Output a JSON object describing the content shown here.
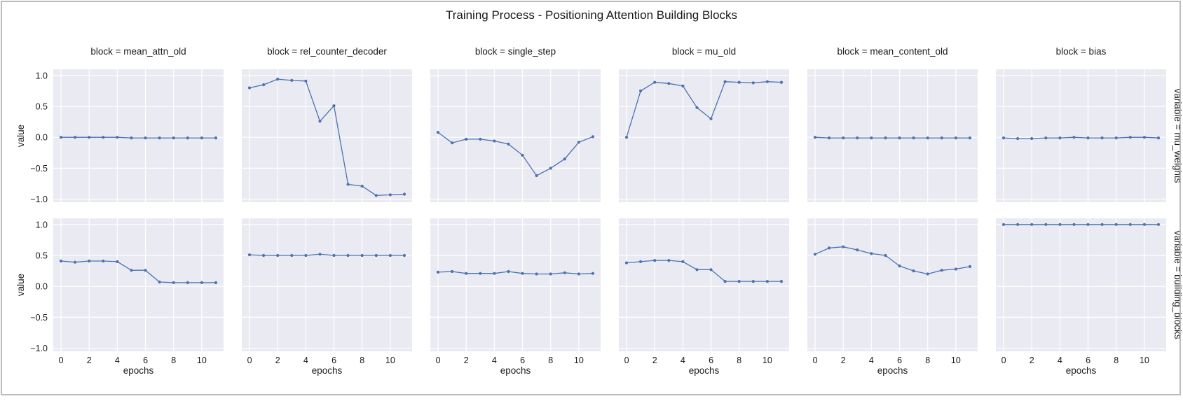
{
  "chart_data": {
    "type": "line",
    "title": "Training Process - Positioning Attention Building Blocks",
    "xlabel": "epochs",
    "ylabel": "value",
    "xlim": [
      -0.55,
      11.55
    ],
    "ylim": [
      -1.05,
      1.1
    ],
    "xticks": [
      0,
      2,
      4,
      6,
      8,
      10
    ],
    "yticks": [
      -1.0,
      -0.5,
      0.0,
      0.5,
      1.0
    ],
    "ytick_labels": [
      "−1.0",
      "−0.5",
      "0.0",
      "0.5",
      "1.0"
    ],
    "grid": true,
    "color": "#4c72b0",
    "background": "#eaeaf2",
    "columns": [
      {
        "key": "mean_attn_old",
        "title": "block = mean_attn_old"
      },
      {
        "key": "rel_counter_decoder",
        "title": "block = rel_counter_decoder"
      },
      {
        "key": "single_step",
        "title": "block = single_step"
      },
      {
        "key": "mu_old",
        "title": "block = mu_old"
      },
      {
        "key": "mean_content_old",
        "title": "block = mean_content_old"
      },
      {
        "key": "bias",
        "title": "block = bias"
      }
    ],
    "rows": [
      {
        "key": "mu_weights",
        "label": "variable = mu_weights"
      },
      {
        "key": "building_blocks",
        "label": "variable = building_blocks"
      }
    ],
    "x": [
      0,
      1,
      2,
      3,
      4,
      5,
      6,
      7,
      8,
      9,
      10,
      11
    ],
    "series": {
      "mu_weights": {
        "mean_attn_old": [
          0.0,
          0.0,
          0.0,
          0.0,
          0.0,
          -0.01,
          -0.01,
          -0.01,
          -0.01,
          -0.01,
          -0.01,
          -0.01
        ],
        "rel_counter_decoder": [
          0.8,
          0.85,
          0.94,
          0.92,
          0.91,
          0.26,
          0.51,
          -0.76,
          -0.79,
          -0.94,
          -0.93,
          -0.92
        ],
        "single_step": [
          0.08,
          -0.09,
          -0.03,
          -0.03,
          -0.06,
          -0.11,
          -0.29,
          -0.62,
          -0.5,
          -0.35,
          -0.08,
          0.01
        ],
        "mu_old": [
          0.0,
          0.75,
          0.89,
          0.87,
          0.83,
          0.48,
          0.3,
          0.9,
          0.89,
          0.88,
          0.9,
          0.89
        ],
        "mean_content_old": [
          0.0,
          -0.01,
          -0.01,
          -0.01,
          -0.01,
          -0.01,
          -0.01,
          -0.01,
          -0.01,
          -0.01,
          -0.01,
          -0.01
        ],
        "bias": [
          -0.01,
          -0.02,
          -0.02,
          -0.01,
          -0.01,
          0.0,
          -0.01,
          -0.01,
          -0.01,
          0.0,
          0.0,
          -0.01
        ]
      },
      "building_blocks": {
        "mean_attn_old": [
          0.41,
          0.39,
          0.41,
          0.41,
          0.4,
          0.26,
          0.26,
          0.07,
          0.06,
          0.06,
          0.06,
          0.06
        ],
        "rel_counter_decoder": [
          0.51,
          0.5,
          0.5,
          0.5,
          0.5,
          0.52,
          0.5,
          0.5,
          0.5,
          0.5,
          0.5,
          0.5
        ],
        "single_step": [
          0.23,
          0.24,
          0.21,
          0.21,
          0.21,
          0.24,
          0.21,
          0.2,
          0.2,
          0.22,
          0.2,
          0.21
        ],
        "mu_old": [
          0.38,
          0.4,
          0.42,
          0.42,
          0.4,
          0.27,
          0.27,
          0.08,
          0.08,
          0.08,
          0.08,
          0.08
        ],
        "mean_content_old": [
          0.52,
          0.62,
          0.64,
          0.59,
          0.53,
          0.5,
          0.33,
          0.25,
          0.2,
          0.26,
          0.28,
          0.32
        ],
        "bias": [
          1.0,
          1.0,
          1.0,
          1.0,
          1.0,
          1.0,
          1.0,
          1.0,
          1.0,
          1.0,
          1.0,
          1.0
        ]
      }
    }
  }
}
